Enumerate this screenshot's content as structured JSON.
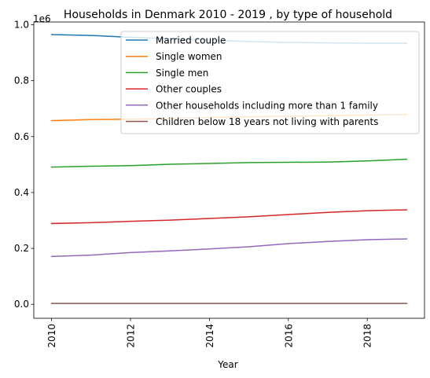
{
  "chart_data": {
    "type": "line",
    "title": "Households in Denmark 2010 - 2019 , by type of household",
    "xlabel": "Year",
    "ylabel": "",
    "offset_text": "1e6",
    "x": [
      2010,
      2011,
      2012,
      2013,
      2014,
      2015,
      2016,
      2017,
      2018,
      2019
    ],
    "xlim": [
      2009.55,
      2019.45
    ],
    "ylim": [
      -0.05,
      1.01
    ],
    "xticks": [
      2010,
      2012,
      2014,
      2016,
      2018
    ],
    "xtick_labels": [
      "2010",
      "2012",
      "2014",
      "2016",
      "2018"
    ],
    "yticks": [
      0.0,
      0.2,
      0.4,
      0.6,
      0.8,
      1.0
    ],
    "ytick_labels": [
      "0.0",
      "0.2",
      "0.4",
      "0.6",
      "0.8",
      "1.0"
    ],
    "legend_position": "top-right",
    "series": [
      {
        "name": "Married couple",
        "color": "#1f77b4",
        "values": [
          0.965,
          0.962,
          0.955,
          0.95,
          0.945,
          0.94,
          0.937,
          0.935,
          0.934,
          0.934
        ]
      },
      {
        "name": "Single women",
        "color": "#ff7f0e",
        "values": [
          0.657,
          0.661,
          0.662,
          0.665,
          0.668,
          0.671,
          0.673,
          0.675,
          0.677,
          0.679
        ]
      },
      {
        "name": "Single men",
        "color": "#2ca02c",
        "values": [
          0.491,
          0.494,
          0.496,
          0.501,
          0.504,
          0.507,
          0.508,
          0.509,
          0.513,
          0.519
        ]
      },
      {
        "name": "Other couples",
        "color": "#d62728",
        "values": [
          0.289,
          0.292,
          0.297,
          0.301,
          0.307,
          0.313,
          0.321,
          0.329,
          0.335,
          0.338
        ]
      },
      {
        "name": "Other households including more than 1 family",
        "color": "#9467bd",
        "values": [
          0.171,
          0.176,
          0.185,
          0.191,
          0.198,
          0.206,
          0.217,
          0.225,
          0.231,
          0.234
        ]
      },
      {
        "name": "Children below 18 years not living with parents",
        "color": "#8c564b",
        "values": [
          0.003,
          0.003,
          0.003,
          0.003,
          0.003,
          0.003,
          0.003,
          0.003,
          0.003,
          0.003
        ]
      }
    ]
  }
}
